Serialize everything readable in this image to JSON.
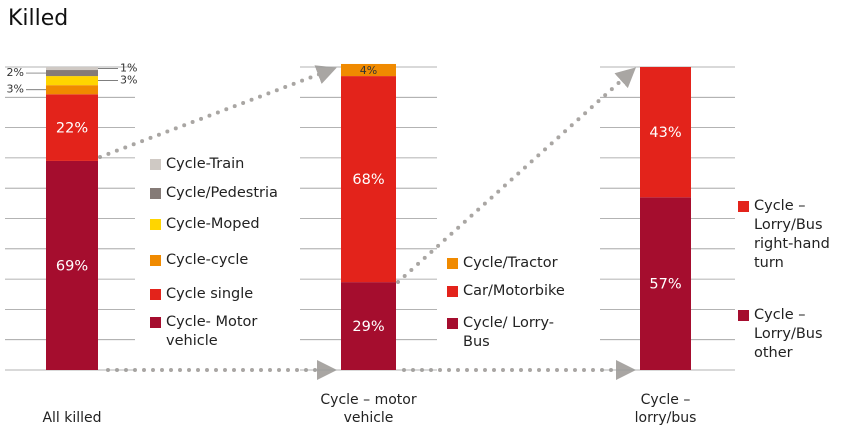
{
  "title": "Killed",
  "chart_data": [
    {
      "type": "bar",
      "stacked": true,
      "category": "All killed",
      "ylim": [
        0,
        100
      ],
      "yticks": [
        0,
        10,
        20,
        30,
        40,
        50,
        60,
        70,
        80,
        90,
        100
      ],
      "grid": true,
      "series": [
        {
          "name": "Cycle- Motor vehicle",
          "color": "#a50d2e",
          "values": [
            69
          ],
          "value_labels": [
            "69%"
          ]
        },
        {
          "name": "Cycle single",
          "color": "#e3231b",
          "values": [
            22
          ],
          "value_labels": [
            "22%"
          ]
        },
        {
          "name": "Cycle-cycle",
          "color": "#f08a00",
          "values": [
            3
          ],
          "value_labels": [
            "3%"
          ]
        },
        {
          "name": "Cycle-Moped",
          "color": "#ffd500",
          "values": [
            3
          ],
          "value_labels": [
            "3%"
          ]
        },
        {
          "name": "Cycle/Pedestria",
          "color": "#857b77",
          "values": [
            2
          ],
          "value_labels": [
            "2%"
          ]
        },
        {
          "name": "Cycle-Train",
          "color": "#cfc9c4",
          "values": [
            1
          ],
          "value_labels": [
            "1%"
          ]
        }
      ]
    },
    {
      "type": "bar",
      "stacked": true,
      "category": "Cycle – motor vehicle",
      "ylim": [
        0,
        100
      ],
      "yticks": [
        0,
        10,
        20,
        30,
        40,
        50,
        60,
        70,
        80,
        90,
        100
      ],
      "grid": true,
      "series": [
        {
          "name": "Cycle/ Lorry-Bus",
          "color": "#a50d2e",
          "values": [
            29
          ],
          "value_labels": [
            "29%"
          ]
        },
        {
          "name": "Car/Motorbike",
          "color": "#e3231b",
          "values": [
            68
          ],
          "value_labels": [
            "68%"
          ]
        },
        {
          "name": "Cycle/Tractor",
          "color": "#f08a00",
          "values": [
            4
          ],
          "value_labels": [
            "4%"
          ]
        }
      ]
    },
    {
      "type": "bar",
      "stacked": true,
      "category": "Cycle – lorry/bus",
      "ylim": [
        0,
        100
      ],
      "yticks": [
        0,
        10,
        20,
        30,
        40,
        50,
        60,
        70,
        80,
        90,
        100
      ],
      "grid": true,
      "series": [
        {
          "name": "Cycle – Lorry/Bus other",
          "color": "#a50d2e",
          "values": [
            57
          ],
          "value_labels": [
            "57%"
          ]
        },
        {
          "name": "Cycle – Lorry/Bus right-hand turn",
          "color": "#e3231b",
          "values": [
            43
          ],
          "value_labels": [
            "43%"
          ]
        }
      ]
    }
  ]
}
